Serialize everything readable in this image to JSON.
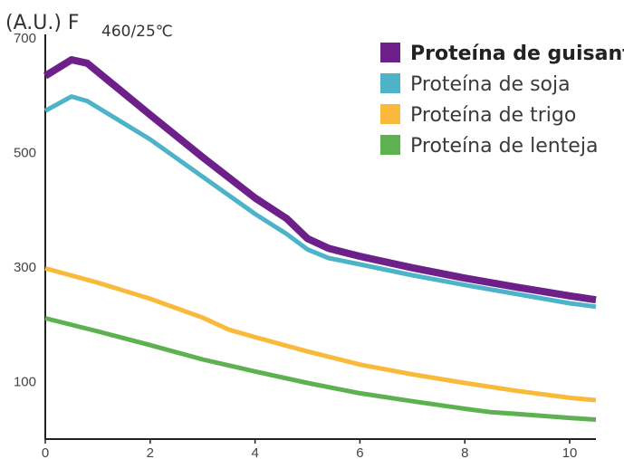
{
  "chart_data": {
    "type": "line",
    "ylabel_main": "(A.U.) F",
    "ylabel_sub": "460/25℃",
    "xlim": [
      0,
      10.5
    ],
    "ylim": [
      0,
      700
    ],
    "x_ticks": [
      "0",
      "2",
      "4",
      "6",
      "8",
      "10"
    ],
    "x_tick_values": [
      0,
      2,
      4,
      6,
      8,
      10
    ],
    "y_ticks": [
      "100",
      "300",
      "500",
      "700"
    ],
    "y_tick_values": [
      100,
      300,
      500,
      700
    ],
    "grid": false,
    "legend_position": "top-right",
    "series": [
      {
        "name": "Proteína de guisante",
        "color": "#6d1f8a",
        "bold": true,
        "points": [
          [
            0,
            634
          ],
          [
            0.5,
            662
          ],
          [
            0.8,
            656
          ],
          [
            2,
            566
          ],
          [
            3,
            492
          ],
          [
            4,
            421
          ],
          [
            4.6,
            385
          ],
          [
            5,
            350
          ],
          [
            5.4,
            333
          ],
          [
            6,
            319
          ],
          [
            7,
            299
          ],
          [
            8,
            281
          ],
          [
            9,
            265
          ],
          [
            10,
            250
          ],
          [
            10.5,
            243
          ]
        ]
      },
      {
        "name": "Proteína de soja",
        "color": "#4db3c8",
        "bold": false,
        "points": [
          [
            0,
            573
          ],
          [
            0.5,
            598
          ],
          [
            0.8,
            590
          ],
          [
            2,
            523
          ],
          [
            3,
            458
          ],
          [
            4,
            393
          ],
          [
            4.6,
            358
          ],
          [
            5,
            331
          ],
          [
            5.4,
            316
          ],
          [
            6,
            305
          ],
          [
            7,
            286
          ],
          [
            8,
            269
          ],
          [
            9,
            253
          ],
          [
            10,
            237
          ],
          [
            10.5,
            231
          ]
        ]
      },
      {
        "name": "Proteína de trigo",
        "color": "#f9ba3b",
        "bold": false,
        "points": [
          [
            0,
            298
          ],
          [
            1,
            273
          ],
          [
            2,
            245
          ],
          [
            3,
            212
          ],
          [
            3.5,
            191
          ],
          [
            4,
            178
          ],
          [
            5,
            153
          ],
          [
            6,
            130
          ],
          [
            7,
            113
          ],
          [
            8,
            98
          ],
          [
            9,
            84
          ],
          [
            10,
            72
          ],
          [
            10.5,
            68
          ]
        ]
      },
      {
        "name": "Proteína de lenteja",
        "color": "#5db150",
        "bold": false,
        "points": [
          [
            0,
            211
          ],
          [
            1,
            188
          ],
          [
            2,
            164
          ],
          [
            3,
            139
          ],
          [
            4,
            118
          ],
          [
            5,
            98
          ],
          [
            6,
            80
          ],
          [
            7,
            66
          ],
          [
            8,
            53
          ],
          [
            8.5,
            47
          ],
          [
            9,
            44
          ],
          [
            10,
            37
          ],
          [
            10.5,
            34
          ]
        ]
      }
    ]
  }
}
